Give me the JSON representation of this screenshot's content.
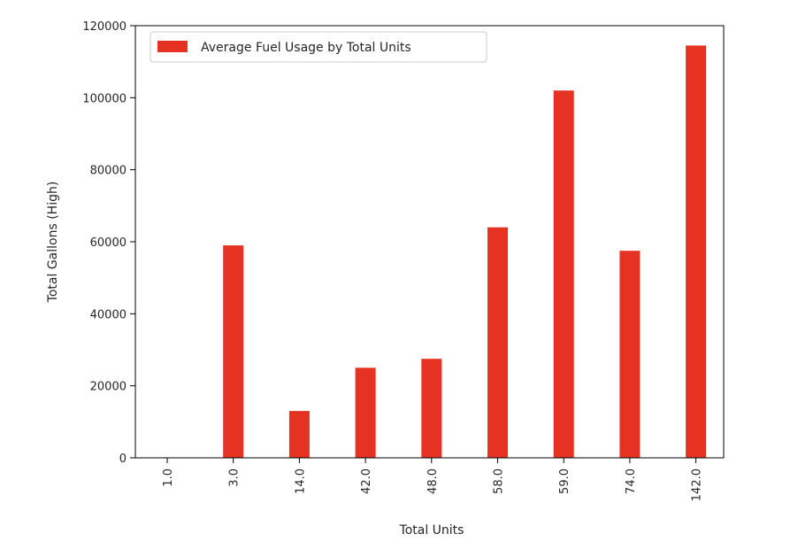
{
  "chart_data": {
    "type": "bar",
    "title": "",
    "xlabel": "Total Units",
    "ylabel": "Total Gallons (High)",
    "categories": [
      "1.0",
      "3.0",
      "14.0",
      "42.0",
      "48.0",
      "58.0",
      "59.0",
      "74.0",
      "142.0"
    ],
    "series": [
      {
        "name": "Average Fuel Usage by Total Units",
        "color": "#e53222",
        "values": [
          0,
          59000,
          13000,
          25000,
          27500,
          64000,
          102000,
          57500,
          114500
        ]
      }
    ],
    "ylim": [
      0,
      120000
    ],
    "yticks": [
      0,
      20000,
      40000,
      60000,
      80000,
      100000,
      120000
    ],
    "grid": false,
    "legend": {
      "placement": "top-left"
    }
  }
}
